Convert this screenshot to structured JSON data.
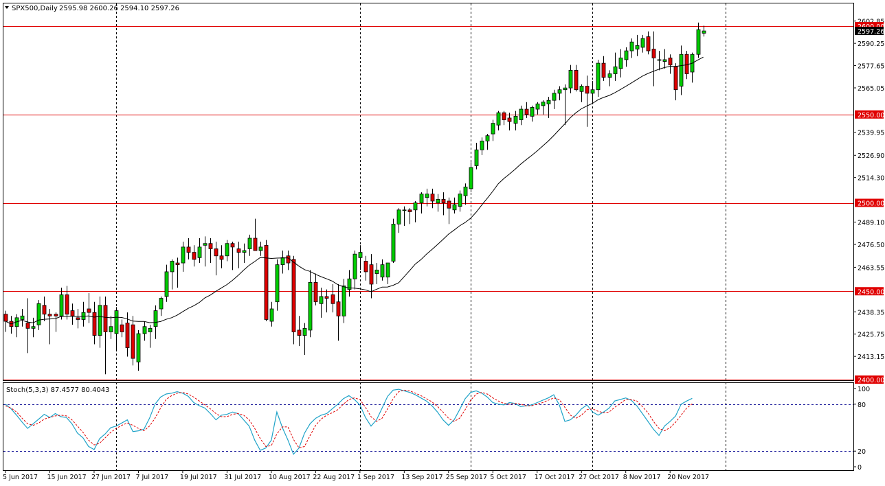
{
  "header": {
    "symbol_label": "SPX500,Daily",
    "ohlc_label": "2595.98 2600.26 2594.10 2597.26"
  },
  "colors": {
    "up": "#00cc00",
    "down": "#dd0000",
    "level_line": "#e00000",
    "ma_line": "#000000",
    "stoch_main": "#1fa3c8",
    "stoch_signal": "#e00000",
    "grid": "#000000",
    "price_tag_bg": "#e00000"
  },
  "chart_data": [
    {
      "type": "candlestick",
      "title": "SPX500,Daily",
      "ylim": [
        2400,
        2607
      ],
      "grid": true,
      "x_tick_labels": [
        "5 Jun 2017",
        "15 Jun 2017",
        "27 Jun 2017",
        "7 Jul 2017",
        "19 Jul 2017",
        "31 Jul 2017",
        "10 Aug 2017",
        "22 Aug 2017",
        "1 Sep 2017",
        "13 Sep 2017",
        "25 Sep 2017",
        "5 Oct 2017",
        "17 Oct 2017",
        "27 Oct 2017",
        "8 Nov 2017",
        "20 Nov 2017"
      ],
      "x_tick_index": [
        0,
        8,
        16,
        24,
        32,
        40,
        48,
        56,
        64,
        72,
        80,
        88,
        96,
        104,
        112,
        120
      ],
      "y_tick_labels": [
        "2602.85",
        "2590.25",
        "2577.65",
        "2565.05",
        "2539.95",
        "2526.90",
        "2514.30",
        "2489.10",
        "2476.50",
        "2463.55",
        "2438.35",
        "2425.75",
        "2413.15"
      ],
      "level_lines": [
        2600.0,
        2550.0,
        2500.0,
        2450.0,
        2400.0
      ],
      "level_labels": [
        "2600.00",
        "2550.00",
        "2500.00",
        "2450.00",
        "2400.00"
      ],
      "current_price_label": "2597.26",
      "current_price": 2597.26,
      "candles": [
        {
          "o": 2437,
          "h": 2439,
          "l": 2427,
          "c": 2433
        },
        {
          "o": 2433,
          "h": 2436,
          "l": 2426,
          "c": 2430
        },
        {
          "o": 2430,
          "h": 2437,
          "l": 2424,
          "c": 2435
        },
        {
          "o": 2434,
          "h": 2440,
          "l": 2430,
          "c": 2436
        },
        {
          "o": 2432,
          "h": 2446,
          "l": 2415,
          "c": 2429
        },
        {
          "o": 2429,
          "h": 2435,
          "l": 2424,
          "c": 2430
        },
        {
          "o": 2431,
          "h": 2445,
          "l": 2428,
          "c": 2443
        },
        {
          "o": 2442,
          "h": 2447,
          "l": 2433,
          "c": 2437
        },
        {
          "o": 2437,
          "h": 2440,
          "l": 2420,
          "c": 2436
        },
        {
          "o": 2437,
          "h": 2438,
          "l": 2427,
          "c": 2436
        },
        {
          "o": 2436,
          "h": 2452,
          "l": 2434,
          "c": 2448
        },
        {
          "o": 2448,
          "h": 2453,
          "l": 2434,
          "c": 2437
        },
        {
          "o": 2439,
          "h": 2443,
          "l": 2431,
          "c": 2436
        },
        {
          "o": 2435,
          "h": 2440,
          "l": 2429,
          "c": 2434
        },
        {
          "o": 2434,
          "h": 2444,
          "l": 2430,
          "c": 2438
        },
        {
          "o": 2440,
          "h": 2449,
          "l": 2432,
          "c": 2438
        },
        {
          "o": 2438,
          "h": 2444,
          "l": 2420,
          "c": 2425
        },
        {
          "o": 2425,
          "h": 2447,
          "l": 2418,
          "c": 2442
        },
        {
          "o": 2442,
          "h": 2447,
          "l": 2403,
          "c": 2427
        },
        {
          "o": 2427,
          "h": 2436,
          "l": 2423,
          "c": 2430
        },
        {
          "o": 2426,
          "h": 2441,
          "l": 2417,
          "c": 2439
        },
        {
          "o": 2431,
          "h": 2434,
          "l": 2424,
          "c": 2427
        },
        {
          "o": 2432,
          "h": 2438,
          "l": 2413,
          "c": 2418
        },
        {
          "o": 2431,
          "h": 2436,
          "l": 2408,
          "c": 2412
        },
        {
          "o": 2410,
          "h": 2428,
          "l": 2405,
          "c": 2426
        },
        {
          "o": 2426,
          "h": 2433,
          "l": 2422,
          "c": 2430
        },
        {
          "o": 2427,
          "h": 2431,
          "l": 2418,
          "c": 2429
        },
        {
          "o": 2430,
          "h": 2442,
          "l": 2423,
          "c": 2439
        },
        {
          "o": 2440,
          "h": 2447,
          "l": 2436,
          "c": 2446
        },
        {
          "o": 2447,
          "h": 2465,
          "l": 2444,
          "c": 2461
        },
        {
          "o": 2461,
          "h": 2468,
          "l": 2451,
          "c": 2467
        },
        {
          "o": 2466,
          "h": 2469,
          "l": 2452,
          "c": 2465
        },
        {
          "o": 2466,
          "h": 2478,
          "l": 2461,
          "c": 2475
        },
        {
          "o": 2475,
          "h": 2480,
          "l": 2468,
          "c": 2472
        },
        {
          "o": 2472,
          "h": 2476,
          "l": 2464,
          "c": 2468
        },
        {
          "o": 2469,
          "h": 2480,
          "l": 2466,
          "c": 2475
        },
        {
          "o": 2476,
          "h": 2481,
          "l": 2464,
          "c": 2477
        },
        {
          "o": 2477,
          "h": 2480,
          "l": 2466,
          "c": 2474
        },
        {
          "o": 2474,
          "h": 2478,
          "l": 2459,
          "c": 2470
        },
        {
          "o": 2470,
          "h": 2476,
          "l": 2463,
          "c": 2468
        },
        {
          "o": 2470,
          "h": 2479,
          "l": 2467,
          "c": 2477
        },
        {
          "o": 2477,
          "h": 2478,
          "l": 2462,
          "c": 2475
        },
        {
          "o": 2474,
          "h": 2478,
          "l": 2463,
          "c": 2472
        },
        {
          "o": 2472,
          "h": 2477,
          "l": 2466,
          "c": 2473
        },
        {
          "o": 2474,
          "h": 2482,
          "l": 2470,
          "c": 2480
        },
        {
          "o": 2480,
          "h": 2491,
          "l": 2474,
          "c": 2473
        },
        {
          "o": 2473,
          "h": 2478,
          "l": 2470,
          "c": 2475
        },
        {
          "o": 2476,
          "h": 2479,
          "l": 2433,
          "c": 2434
        },
        {
          "o": 2433,
          "h": 2444,
          "l": 2430,
          "c": 2440
        },
        {
          "o": 2444,
          "h": 2468,
          "l": 2439,
          "c": 2465
        },
        {
          "o": 2465,
          "h": 2473,
          "l": 2460,
          "c": 2469
        },
        {
          "o": 2470,
          "h": 2473,
          "l": 2462,
          "c": 2466
        },
        {
          "o": 2468,
          "h": 2470,
          "l": 2420,
          "c": 2427
        },
        {
          "o": 2428,
          "h": 2436,
          "l": 2419,
          "c": 2425
        },
        {
          "o": 2425,
          "h": 2432,
          "l": 2414,
          "c": 2429
        },
        {
          "o": 2428,
          "h": 2462,
          "l": 2424,
          "c": 2455
        },
        {
          "o": 2455,
          "h": 2460,
          "l": 2442,
          "c": 2444
        },
        {
          "o": 2443,
          "h": 2452,
          "l": 2435,
          "c": 2447
        },
        {
          "o": 2447,
          "h": 2451,
          "l": 2438,
          "c": 2446
        },
        {
          "o": 2448,
          "h": 2454,
          "l": 2438,
          "c": 2443
        },
        {
          "o": 2444,
          "h": 2454,
          "l": 2422,
          "c": 2436
        },
        {
          "o": 2436,
          "h": 2457,
          "l": 2432,
          "c": 2453
        },
        {
          "o": 2451,
          "h": 2462,
          "l": 2447,
          "c": 2457
        },
        {
          "o": 2457,
          "h": 2473,
          "l": 2451,
          "c": 2471
        },
        {
          "o": 2469,
          "h": 2476,
          "l": 2462,
          "c": 2472
        },
        {
          "o": 2467,
          "h": 2470,
          "l": 2456,
          "c": 2461
        },
        {
          "o": 2465,
          "h": 2471,
          "l": 2446,
          "c": 2454
        },
        {
          "o": 2460,
          "h": 2466,
          "l": 2454,
          "c": 2462
        },
        {
          "o": 2458,
          "h": 2468,
          "l": 2456,
          "c": 2465
        },
        {
          "o": 2458,
          "h": 2466,
          "l": 2454,
          "c": 2466
        },
        {
          "o": 2467,
          "h": 2491,
          "l": 2466,
          "c": 2488
        },
        {
          "o": 2488,
          "h": 2497,
          "l": 2483,
          "c": 2496
        },
        {
          "o": 2496,
          "h": 2498,
          "l": 2487,
          "c": 2496
        },
        {
          "o": 2496,
          "h": 2497,
          "l": 2488,
          "c": 2495
        },
        {
          "o": 2496,
          "h": 2501,
          "l": 2489,
          "c": 2500
        },
        {
          "o": 2500,
          "h": 2506,
          "l": 2494,
          "c": 2505
        },
        {
          "o": 2503,
          "h": 2508,
          "l": 2498,
          "c": 2505
        },
        {
          "o": 2505,
          "h": 2508,
          "l": 2497,
          "c": 2501
        },
        {
          "o": 2500,
          "h": 2505,
          "l": 2495,
          "c": 2502
        },
        {
          "o": 2502,
          "h": 2506,
          "l": 2493,
          "c": 2500
        },
        {
          "o": 2501,
          "h": 2503,
          "l": 2488,
          "c": 2497
        },
        {
          "o": 2496,
          "h": 2503,
          "l": 2494,
          "c": 2499
        },
        {
          "o": 2498,
          "h": 2507,
          "l": 2495,
          "c": 2505
        },
        {
          "o": 2504,
          "h": 2511,
          "l": 2499,
          "c": 2509
        },
        {
          "o": 2508,
          "h": 2523,
          "l": 2506,
          "c": 2520
        },
        {
          "o": 2521,
          "h": 2534,
          "l": 2519,
          "c": 2530
        },
        {
          "o": 2530,
          "h": 2537,
          "l": 2527,
          "c": 2535
        },
        {
          "o": 2535,
          "h": 2539,
          "l": 2530,
          "c": 2538
        },
        {
          "o": 2539,
          "h": 2547,
          "l": 2535,
          "c": 2545
        },
        {
          "o": 2544,
          "h": 2552,
          "l": 2541,
          "c": 2551
        },
        {
          "o": 2551,
          "h": 2552,
          "l": 2544,
          "c": 2547
        },
        {
          "o": 2548,
          "h": 2551,
          "l": 2541,
          "c": 2546
        },
        {
          "o": 2545,
          "h": 2552,
          "l": 2541,
          "c": 2549
        },
        {
          "o": 2547,
          "h": 2555,
          "l": 2544,
          "c": 2553
        },
        {
          "o": 2553,
          "h": 2557,
          "l": 2548,
          "c": 2550
        },
        {
          "o": 2549,
          "h": 2555,
          "l": 2546,
          "c": 2554
        },
        {
          "o": 2553,
          "h": 2557,
          "l": 2550,
          "c": 2556
        },
        {
          "o": 2555,
          "h": 2558,
          "l": 2550,
          "c": 2557
        },
        {
          "o": 2556,
          "h": 2560,
          "l": 2548,
          "c": 2558
        },
        {
          "o": 2558,
          "h": 2564,
          "l": 2553,
          "c": 2562
        },
        {
          "o": 2562,
          "h": 2566,
          "l": 2558,
          "c": 2564
        },
        {
          "o": 2564,
          "h": 2567,
          "l": 2544,
          "c": 2565
        },
        {
          "o": 2565,
          "h": 2578,
          "l": 2562,
          "c": 2575
        },
        {
          "o": 2575,
          "h": 2578,
          "l": 2563,
          "c": 2564
        },
        {
          "o": 2563,
          "h": 2567,
          "l": 2557,
          "c": 2566
        },
        {
          "o": 2566,
          "h": 2572,
          "l": 2543,
          "c": 2562
        },
        {
          "o": 2562,
          "h": 2569,
          "l": 2556,
          "c": 2564
        },
        {
          "o": 2564,
          "h": 2581,
          "l": 2560,
          "c": 2579
        },
        {
          "o": 2579,
          "h": 2583,
          "l": 2569,
          "c": 2571
        },
        {
          "o": 2571,
          "h": 2575,
          "l": 2566,
          "c": 2573
        },
        {
          "o": 2573,
          "h": 2585,
          "l": 2569,
          "c": 2577
        },
        {
          "o": 2576,
          "h": 2587,
          "l": 2571,
          "c": 2582
        },
        {
          "o": 2581,
          "h": 2588,
          "l": 2577,
          "c": 2586
        },
        {
          "o": 2586,
          "h": 2593,
          "l": 2582,
          "c": 2591
        },
        {
          "o": 2587,
          "h": 2595,
          "l": 2583,
          "c": 2589
        },
        {
          "o": 2588,
          "h": 2595,
          "l": 2585,
          "c": 2593
        },
        {
          "o": 2594,
          "h": 2597,
          "l": 2584,
          "c": 2586
        },
        {
          "o": 2587,
          "h": 2597,
          "l": 2566,
          "c": 2582
        },
        {
          "o": 2581,
          "h": 2586,
          "l": 2575,
          "c": 2581
        },
        {
          "o": 2580,
          "h": 2587,
          "l": 2576,
          "c": 2581
        },
        {
          "o": 2582,
          "h": 2584,
          "l": 2573,
          "c": 2578
        },
        {
          "o": 2577,
          "h": 2579,
          "l": 2558,
          "c": 2564
        },
        {
          "o": 2566,
          "h": 2589,
          "l": 2561,
          "c": 2584
        },
        {
          "o": 2584,
          "h": 2586,
          "l": 2570,
          "c": 2573
        },
        {
          "o": 2574,
          "h": 2585,
          "l": 2568,
          "c": 2584
        },
        {
          "o": 2584,
          "h": 2602,
          "l": 2582,
          "c": 2598
        },
        {
          "o": 2595.98,
          "h": 2600.26,
          "l": 2594.1,
          "c": 2597.26
        }
      ]
    },
    {
      "type": "line",
      "title": "Stoch(5,3,3) 87.4577 80.4043",
      "ylim": [
        0,
        100
      ],
      "y_tick_labels": [
        "100",
        "80",
        "20",
        "0"
      ],
      "levels": [
        80,
        20
      ],
      "series": [
        {
          "values": [
            80,
            74,
            66,
            57,
            49,
            55,
            61,
            67,
            63,
            68,
            64,
            63,
            55,
            43,
            37,
            26,
            22,
            36,
            42,
            50,
            52,
            56,
            60,
            45,
            46,
            48,
            62,
            80,
            89,
            93,
            94,
            96,
            94,
            90,
            82,
            78,
            75,
            68,
            60,
            66,
            67,
            70,
            68,
            60,
            52,
            34,
            21,
            24,
            34,
            70,
            50,
            34,
            16,
            24,
            43,
            55,
            62,
            66,
            68,
            74,
            80,
            87,
            91,
            86,
            79,
            63,
            52,
            60,
            75,
            90,
            98,
            99,
            97,
            95,
            92,
            88,
            84,
            78,
            70,
            60,
            53,
            60,
            73,
            87,
            95,
            97,
            94,
            89,
            82,
            80,
            79,
            82,
            81,
            77,
            78,
            79,
            82,
            85,
            88,
            92,
            79,
            58,
            60,
            66,
            74,
            79,
            70,
            66,
            70,
            75,
            84,
            86,
            88,
            85,
            78,
            68,
            58,
            48,
            40,
            52,
            58,
            65,
            80,
            84,
            87.46
          ]
        },
        {
          "values": [
            78,
            75,
            70,
            62,
            55,
            53,
            56,
            61,
            63,
            65,
            66,
            65,
            60,
            52,
            44,
            34,
            28,
            30,
            37,
            44,
            49,
            53,
            56,
            53,
            49,
            46,
            52,
            62,
            75,
            86,
            91,
            94,
            95,
            93,
            89,
            84,
            79,
            74,
            68,
            64,
            64,
            67,
            68,
            66,
            60,
            49,
            36,
            26,
            27,
            42,
            51,
            51,
            35,
            24,
            26,
            40,
            53,
            61,
            66,
            69,
            73,
            80,
            86,
            88,
            86,
            76,
            64,
            58,
            62,
            74,
            87,
            96,
            98,
            97,
            94,
            91,
            87,
            83,
            77,
            70,
            62,
            58,
            62,
            73,
            85,
            93,
            95,
            93,
            88,
            84,
            81,
            80,
            81,
            80,
            78,
            78,
            80,
            82,
            85,
            88,
            86,
            76,
            66,
            62,
            66,
            73,
            74,
            71,
            69,
            70,
            76,
            81,
            86,
            86,
            84,
            77,
            69,
            58,
            49,
            46,
            50,
            57,
            66,
            75,
            80.4
          ]
        }
      ]
    }
  ]
}
